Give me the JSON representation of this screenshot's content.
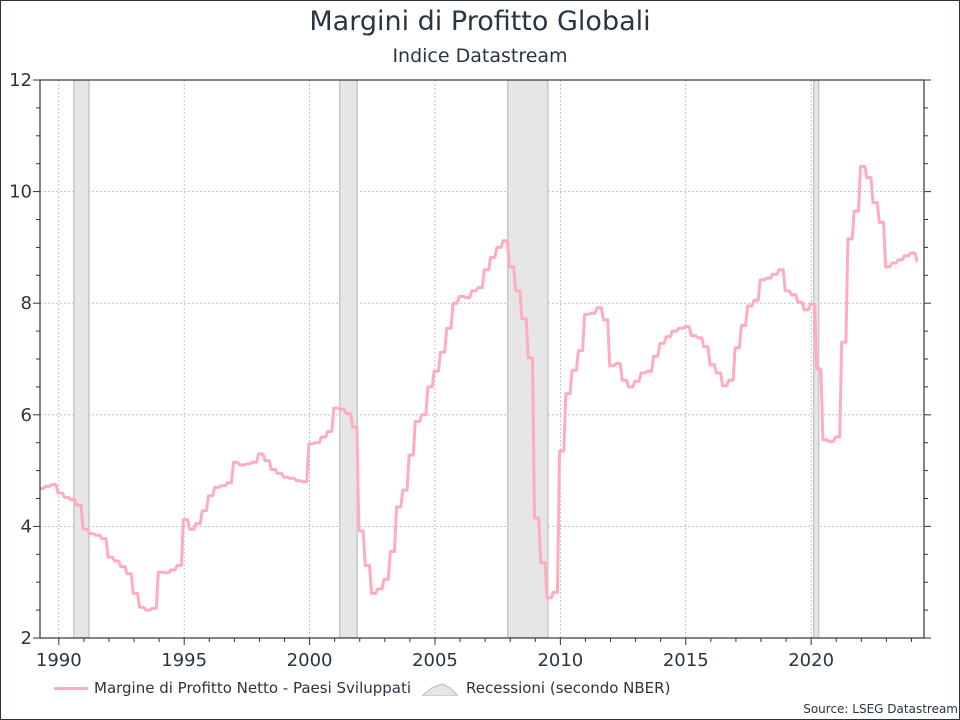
{
  "chart_data": {
    "type": "line",
    "title": "Margini di Profitto Globali",
    "subtitle": "Indice Datastream",
    "xlim": [
      1989.25,
      2024.5
    ],
    "ylim": [
      2,
      12
    ],
    "x_ticks": [
      1990,
      1995,
      2000,
      2005,
      2010,
      2015,
      2020
    ],
    "y_ticks": [
      2,
      4,
      6,
      8,
      10,
      12
    ],
    "grid": true,
    "legend_position": "bottom",
    "series": [
      {
        "name": "Margine di Profitto Netto - Paesi Sviluppati",
        "color": "#ffadbc",
        "x": [
          1989.25,
          1989.5,
          1989.75,
          1990.0,
          1990.25,
          1990.5,
          1990.75,
          1991.0,
          1991.25,
          1991.5,
          1991.75,
          1992.0,
          1992.25,
          1992.5,
          1992.75,
          1993.0,
          1993.25,
          1993.5,
          1993.75,
          1994.0,
          1994.25,
          1994.5,
          1994.75,
          1995.0,
          1995.25,
          1995.5,
          1995.75,
          1996.0,
          1996.25,
          1996.5,
          1996.75,
          1997.0,
          1997.25,
          1997.5,
          1997.75,
          1998.0,
          1998.25,
          1998.5,
          1998.75,
          1999.0,
          1999.25,
          1999.5,
          1999.75,
          2000.0,
          2000.25,
          2000.5,
          2000.75,
          2001.0,
          2001.25,
          2001.5,
          2001.75,
          2002.0,
          2002.25,
          2002.5,
          2002.75,
          2003.0,
          2003.25,
          2003.5,
          2003.75,
          2004.0,
          2004.25,
          2004.5,
          2004.75,
          2005.0,
          2005.25,
          2005.5,
          2005.75,
          2006.0,
          2006.25,
          2006.5,
          2006.75,
          2007.0,
          2007.25,
          2007.5,
          2007.75,
          2008.0,
          2008.25,
          2008.5,
          2008.75,
          2009.0,
          2009.25,
          2009.5,
          2009.75,
          2010.0,
          2010.25,
          2010.5,
          2010.75,
          2011.0,
          2011.25,
          2011.5,
          2011.75,
          2012.0,
          2012.25,
          2012.5,
          2012.75,
          2013.0,
          2013.25,
          2013.5,
          2013.75,
          2014.0,
          2014.25,
          2014.5,
          2014.75,
          2015.0,
          2015.25,
          2015.5,
          2015.75,
          2016.0,
          2016.25,
          2016.5,
          2016.75,
          2017.0,
          2017.25,
          2017.5,
          2017.75,
          2018.0,
          2018.25,
          2018.5,
          2018.75,
          2019.0,
          2019.25,
          2019.5,
          2019.75,
          2020.0,
          2020.25,
          2020.5,
          2020.75,
          2021.0,
          2021.25,
          2021.5,
          2021.75,
          2022.0,
          2022.25,
          2022.5,
          2022.75,
          2023.0,
          2023.25,
          2023.5,
          2023.75,
          2024.0,
          2024.25
        ],
        "values": [
          4.68,
          4.72,
          4.75,
          4.6,
          4.52,
          4.48,
          4.38,
          3.95,
          3.87,
          3.84,
          3.78,
          3.45,
          3.38,
          3.28,
          3.15,
          2.8,
          2.55,
          2.5,
          2.53,
          3.18,
          3.17,
          3.22,
          3.3,
          4.12,
          3.95,
          4.05,
          4.28,
          4.55,
          4.7,
          4.73,
          4.78,
          5.15,
          5.1,
          5.12,
          5.15,
          5.3,
          5.18,
          5.02,
          4.95,
          4.88,
          4.86,
          4.82,
          4.8,
          5.48,
          5.5,
          5.6,
          5.7,
          6.12,
          6.1,
          6.02,
          5.78,
          3.92,
          3.3,
          2.8,
          2.88,
          3.05,
          3.55,
          4.35,
          4.65,
          5.28,
          5.88,
          6.0,
          6.5,
          6.78,
          7.12,
          7.55,
          8.0,
          8.12,
          8.1,
          8.22,
          8.28,
          8.6,
          8.82,
          9.0,
          9.12,
          8.65,
          8.22,
          7.72,
          7.02,
          4.15,
          3.35,
          2.72,
          2.82,
          5.35,
          6.38,
          6.8,
          7.15,
          7.8,
          7.82,
          7.92,
          7.7,
          6.88,
          6.92,
          6.62,
          6.5,
          6.6,
          6.75,
          6.78,
          7.05,
          7.28,
          7.4,
          7.5,
          7.55,
          7.58,
          7.42,
          7.38,
          7.22,
          6.9,
          6.75,
          6.52,
          6.62,
          7.2,
          7.6,
          7.95,
          8.05,
          8.42,
          8.45,
          8.52,
          8.6,
          8.22,
          8.15,
          8.02,
          7.88,
          7.98,
          6.82,
          5.55,
          5.52,
          5.6,
          7.3,
          9.15,
          9.65,
          10.45,
          10.25,
          9.8,
          9.45,
          8.65,
          8.72,
          8.78,
          8.85,
          8.9,
          8.76
        ]
      }
    ],
    "shaded_periods": {
      "name": "Recessioni (secondo NBER)",
      "color": "#e6e6e6",
      "edge_color": "#c8c8c8",
      "ranges": [
        [
          1990.6,
          1991.2
        ],
        [
          2001.2,
          2001.9
        ],
        [
          2007.9,
          2009.5
        ],
        [
          2020.1,
          2020.3
        ]
      ]
    },
    "source": "Source: LSEG Datastream"
  }
}
